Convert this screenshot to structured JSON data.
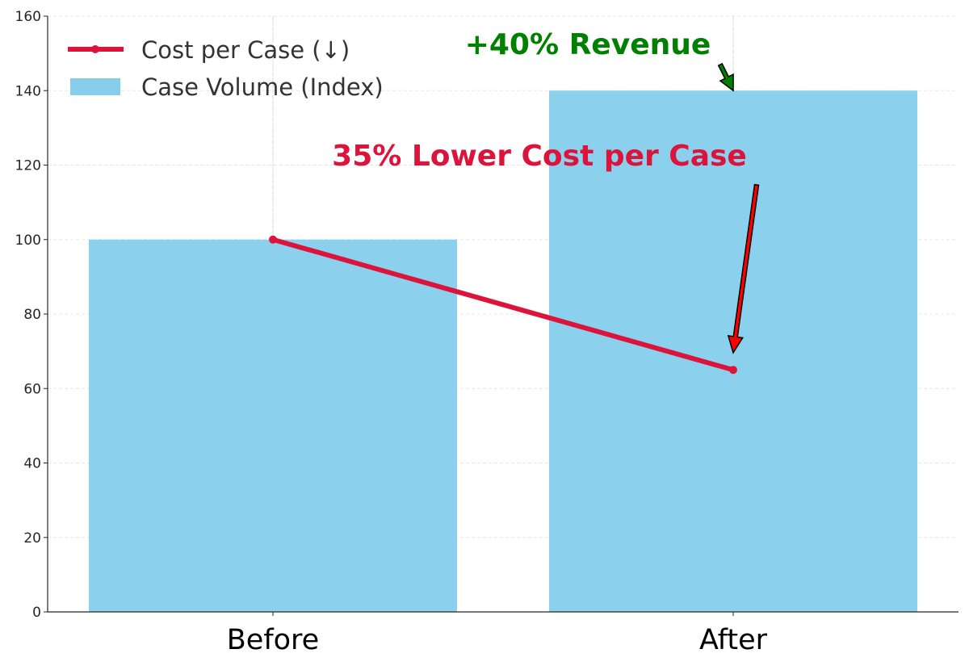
{
  "chart_data": {
    "type": "bar",
    "categories": [
      "Before",
      "After"
    ],
    "series": [
      {
        "name": "Case Volume (Index)",
        "kind": "bar",
        "values": [
          100,
          140
        ],
        "color": "#87CEEB"
      },
      {
        "name": "Cost per Case (↓)",
        "kind": "line",
        "values": [
          100,
          65
        ],
        "color": "#DC143C"
      }
    ],
    "ylim": [
      0,
      160
    ],
    "yticks": [
      0,
      20,
      40,
      60,
      80,
      100,
      120,
      140,
      160
    ],
    "grid": true,
    "legend_position": "top-left",
    "annotations": [
      {
        "text": "+40% Revenue",
        "color": "#008000",
        "arrow_color": "#008000",
        "target_category": "After",
        "target_value": 140
      },
      {
        "text": "35% Lower Cost per Case",
        "color": "#DC143C",
        "arrow_color": "#FF0000",
        "target_category": "After",
        "target_value": 67
      }
    ]
  }
}
